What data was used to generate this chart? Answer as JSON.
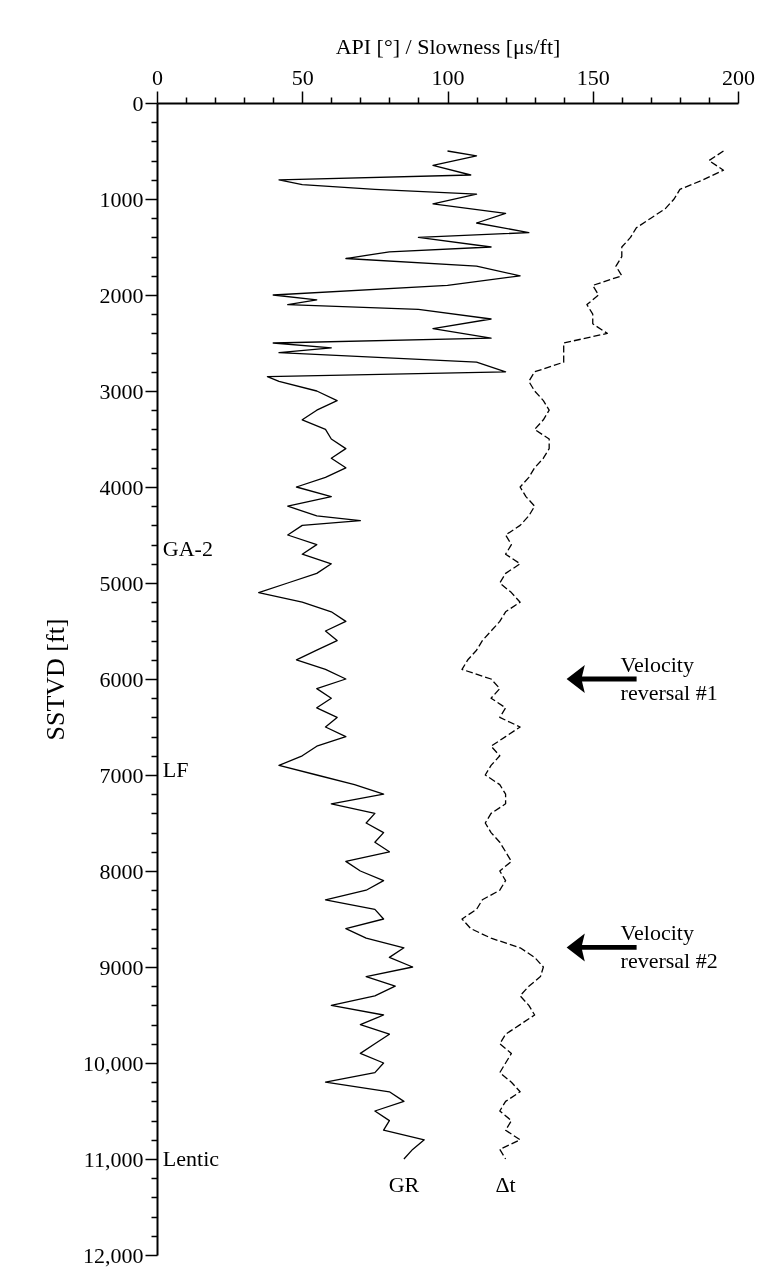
{
  "chart_data": {
    "type": "line",
    "xlabel": "API [°] / Slowness [μs/ft]",
    "ylabel": "SSTVD [ft]",
    "xlim": [
      0,
      200
    ],
    "ylim": [
      12000,
      0
    ],
    "xticks": [
      0,
      {
        "value": 10,
        "label": null
      },
      {
        "value": 20,
        "label": null
      },
      {
        "value": 30,
        "label": null
      },
      {
        "value": 40,
        "label": null
      },
      50,
      {
        "value": 60,
        "label": null
      },
      {
        "value": 70,
        "label": null
      },
      {
        "value": 80,
        "label": null
      },
      {
        "value": 90,
        "label": null
      },
      100,
      {
        "value": 110,
        "label": null
      },
      {
        "value": 120,
        "label": null
      },
      {
        "value": 130,
        "label": null
      },
      {
        "value": 140,
        "label": null
      },
      150,
      {
        "value": 160,
        "label": null
      },
      {
        "value": 170,
        "label": null
      },
      {
        "value": 180,
        "label": null
      },
      {
        "value": 190,
        "label": null
      },
      200
    ],
    "yticks": [
      0,
      {
        "value": 200,
        "label": null
      },
      {
        "value": 400,
        "label": null
      },
      {
        "value": 600,
        "label": null
      },
      {
        "value": 800,
        "label": null
      },
      1000,
      {
        "value": 1200,
        "label": null
      },
      {
        "value": 1400,
        "label": null
      },
      {
        "value": 1600,
        "label": null
      },
      {
        "value": 1800,
        "label": null
      },
      2000,
      {
        "value": 2200,
        "label": null
      },
      {
        "value": 2400,
        "label": null
      },
      {
        "value": 2600,
        "label": null
      },
      {
        "value": 2800,
        "label": null
      },
      3000,
      {
        "value": 3200,
        "label": null
      },
      {
        "value": 3400,
        "label": null
      },
      {
        "value": 3600,
        "label": null
      },
      {
        "value": 3800,
        "label": null
      },
      4000,
      {
        "value": 4200,
        "label": null
      },
      {
        "value": 4400,
        "label": null
      },
      {
        "value": 4600,
        "label": null
      },
      {
        "value": 4800,
        "label": null
      },
      5000,
      {
        "value": 5200,
        "label": null
      },
      {
        "value": 5400,
        "label": null
      },
      {
        "value": 5600,
        "label": null
      },
      {
        "value": 5800,
        "label": null
      },
      6000,
      {
        "value": 6200,
        "label": null
      },
      {
        "value": 6400,
        "label": null
      },
      {
        "value": 6600,
        "label": null
      },
      {
        "value": 6800,
        "label": null
      },
      7000,
      {
        "value": 7200,
        "label": null
      },
      {
        "value": 7400,
        "label": null
      },
      {
        "value": 7600,
        "label": null
      },
      {
        "value": 7800,
        "label": null
      },
      8000,
      {
        "value": 8200,
        "label": null
      },
      {
        "value": 8400,
        "label": null
      },
      {
        "value": 8600,
        "label": null
      },
      {
        "value": 8800,
        "label": null
      },
      9000,
      {
        "value": 9200,
        "label": null
      },
      {
        "value": 9400,
        "label": null
      },
      {
        "value": 9600,
        "label": null
      },
      {
        "value": 9800,
        "label": null
      },
      {
        "value": 10000,
        "label": "10,000"
      },
      {
        "value": 10200,
        "label": null
      },
      {
        "value": 10400,
        "label": null
      },
      {
        "value": 10600,
        "label": null
      },
      {
        "value": 10800,
        "label": null
      },
      {
        "value": 11000,
        "label": "11,000"
      },
      {
        "value": 11200,
        "label": null
      },
      {
        "value": 11400,
        "label": null
      },
      {
        "value": 11600,
        "label": null
      },
      {
        "value": 11800,
        "label": null
      },
      {
        "value": 12000,
        "label": "12,000"
      }
    ],
    "grid": false,
    "series": [
      {
        "name": "GR",
        "color": "#000000",
        "line_style": "solid",
        "x": [
          100,
          110,
          95,
          108,
          42,
          50,
          75,
          110,
          95,
          120,
          110,
          128,
          90,
          115,
          80,
          65,
          110,
          125,
          100,
          40,
          55,
          45,
          90,
          115,
          95,
          115,
          40,
          60,
          42,
          110,
          120,
          38,
          42,
          55,
          62,
          55,
          50,
          58,
          60,
          65,
          60,
          65,
          58,
          48,
          60,
          45,
          55,
          70,
          50,
          45,
          55,
          50,
          60,
          55,
          45,
          35,
          50,
          60,
          65,
          58,
          62,
          55,
          48,
          58,
          65,
          55,
          60,
          55,
          62,
          58,
          65,
          55,
          50,
          42,
          55,
          68,
          78,
          60,
          75,
          72,
          78,
          75,
          80,
          65,
          70,
          78,
          72,
          58,
          75,
          78,
          65,
          72,
          85,
          80,
          88,
          72,
          82,
          75,
          60,
          78,
          70,
          80,
          75,
          70,
          78,
          75,
          58,
          80,
          85,
          75,
          80,
          78,
          92,
          88,
          85
        ],
        "values": [
          500,
          550,
          650,
          750,
          800,
          850,
          900,
          950,
          1050,
          1150,
          1250,
          1350,
          1400,
          1500,
          1550,
          1620,
          1700,
          1800,
          1900,
          2000,
          2050,
          2100,
          2150,
          2250,
          2350,
          2450,
          2500,
          2550,
          2600,
          2700,
          2800,
          2850,
          2900,
          3000,
          3100,
          3200,
          3300,
          3400,
          3500,
          3600,
          3700,
          3800,
          3900,
          4000,
          4100,
          4200,
          4300,
          4350,
          4400,
          4500,
          4600,
          4700,
          4800,
          4900,
          5000,
          5100,
          5200,
          5300,
          5400,
          5500,
          5600,
          5700,
          5800,
          5900,
          6000,
          6100,
          6200,
          6300,
          6400,
          6500,
          6600,
          6700,
          6800,
          6900,
          7000,
          7100,
          7200,
          7300,
          7400,
          7500,
          7600,
          7700,
          7800,
          7900,
          8000,
          8100,
          8200,
          8300,
          8400,
          8500,
          8600,
          8700,
          8800,
          8900,
          9000,
          9100,
          9200,
          9300,
          9400,
          9500,
          9600,
          9700,
          9800,
          9900,
          10000,
          10100,
          10200,
          10300,
          10400,
          10500,
          10600,
          10700,
          10800,
          10900,
          11000
        ]
      },
      {
        "name": "Δt",
        "color": "#000000",
        "line_style": "dashed",
        "x": [
          195,
          190,
          195,
          188,
          180,
          178,
          175,
          170,
          165,
          163,
          160,
          160,
          158,
          160,
          150,
          152,
          148,
          150,
          150,
          155,
          140,
          140,
          140,
          130,
          128,
          130,
          133,
          135,
          133,
          130,
          135,
          135,
          133,
          130,
          128,
          125,
          127,
          130,
          128,
          125,
          120,
          122,
          120,
          125,
          120,
          118,
          122,
          125,
          120,
          118,
          115,
          112,
          110,
          107,
          105,
          115,
          118,
          115,
          120,
          118,
          125,
          120,
          115,
          118,
          115,
          113,
          118,
          120,
          120,
          115,
          113,
          115,
          118,
          120,
          122,
          118,
          120,
          118,
          112,
          110,
          105,
          108,
          115,
          125,
          130,
          133,
          132,
          128,
          125,
          128,
          130,
          125,
          120,
          118,
          122,
          120,
          118,
          122,
          125,
          120,
          118,
          122,
          120,
          125,
          118,
          120
        ],
        "values": [
          500,
          600,
          700,
          800,
          900,
          1000,
          1100,
          1200,
          1300,
          1400,
          1500,
          1600,
          1700,
          1800,
          1900,
          2000,
          2100,
          2200,
          2300,
          2400,
          2500,
          2600,
          2700,
          2800,
          2900,
          3000,
          3100,
          3200,
          3300,
          3400,
          3500,
          3600,
          3700,
          3800,
          3900,
          4000,
          4100,
          4200,
          4300,
          4400,
          4500,
          4600,
          4700,
          4800,
          4900,
          5000,
          5100,
          5200,
          5300,
          5400,
          5500,
          5600,
          5700,
          5800,
          5900,
          6000,
          6100,
          6200,
          6300,
          6400,
          6500,
          6600,
          6700,
          6800,
          6900,
          7000,
          7100,
          7200,
          7300,
          7400,
          7500,
          7600,
          7700,
          7800,
          7900,
          8000,
          8100,
          8200,
          8300,
          8400,
          8500,
          8600,
          8700,
          8800,
          8900,
          9000,
          9100,
          9200,
          9300,
          9400,
          9500,
          9600,
          9700,
          9800,
          9900,
          10000,
          10100,
          10200,
          10300,
          10400,
          10500,
          10600,
          10700,
          10800,
          10900,
          11000
        ]
      }
    ],
    "annotations": [
      "GA-2",
      "LF",
      "Lentic",
      "Velocity reversal #1",
      "Velocity reversal #2"
    ]
  }
}
